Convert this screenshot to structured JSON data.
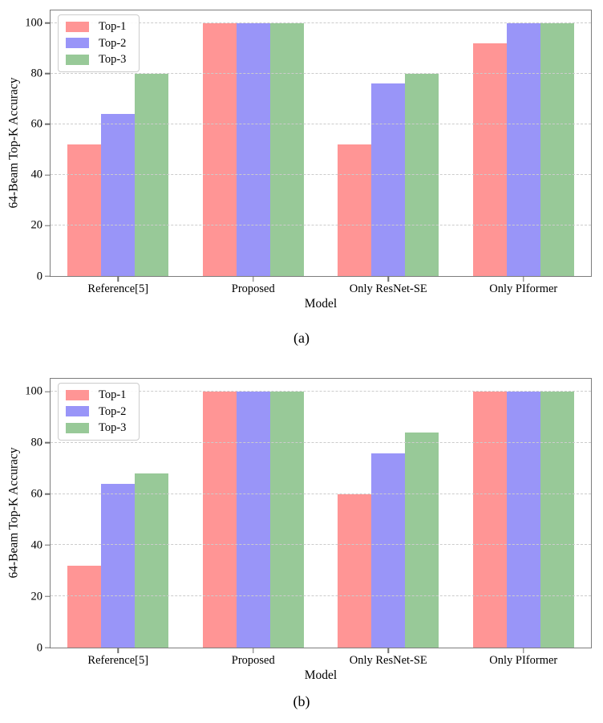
{
  "page": {
    "background": "#ffffff"
  },
  "chart_data": [
    {
      "type": "bar",
      "title": "",
      "caption": "(a)",
      "xlabel": "Model",
      "ylabel": "64-Beam Top-K Accuracy",
      "categories": [
        "Reference[5]",
        "Proposed",
        "Only ResNet-SE",
        "Only PIformer"
      ],
      "series": [
        {
          "name": "Top-1",
          "color": "#ff9595",
          "values": [
            52,
            100,
            52,
            92
          ]
        },
        {
          "name": "Top-2",
          "color": "#9995f8",
          "values": [
            64,
            100,
            76,
            100
          ]
        },
        {
          "name": "Top-3",
          "color": "#98c998",
          "values": [
            80,
            100,
            80,
            100
          ]
        }
      ],
      "ylim": [
        0,
        105
      ],
      "yticks": [
        0,
        20,
        40,
        60,
        80,
        100
      ],
      "grid": "dashed-horizontal",
      "legend_position": "upper left",
      "axis_color": "#7d7d7d",
      "gridline_color": "#cccccc"
    },
    {
      "type": "bar",
      "title": "",
      "caption": "(b)",
      "xlabel": "Model",
      "ylabel": "64-Beam Top-K Accuracy",
      "categories": [
        "Reference[5]",
        "Proposed",
        "Only ResNet-SE",
        "Only PIformer"
      ],
      "series": [
        {
          "name": "Top-1",
          "color": "#ff9595",
          "values": [
            32,
            100,
            60,
            100
          ]
        },
        {
          "name": "Top-2",
          "color": "#9995f8",
          "values": [
            64,
            100,
            76,
            100
          ]
        },
        {
          "name": "Top-3",
          "color": "#98c998",
          "values": [
            68,
            100,
            84,
            100
          ]
        }
      ],
      "ylim": [
        0,
        105
      ],
      "yticks": [
        0,
        20,
        40,
        60,
        80,
        100
      ],
      "grid": "dashed-horizontal",
      "legend_position": "upper left",
      "axis_color": "#7d7d7d",
      "gridline_color": "#cccccc"
    }
  ]
}
